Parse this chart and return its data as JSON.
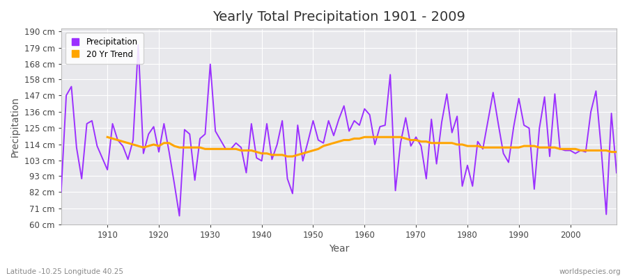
{
  "title": "Yearly Total Precipitation 1901 - 2009",
  "xlabel": "Year",
  "ylabel": "Precipitation",
  "subtitle": "Latitude -10.25 Longitude 40.25",
  "watermark": "worldspecies.org",
  "years": [
    1901,
    1902,
    1903,
    1904,
    1905,
    1906,
    1907,
    1908,
    1909,
    1910,
    1911,
    1912,
    1913,
    1914,
    1915,
    1916,
    1917,
    1918,
    1919,
    1920,
    1921,
    1922,
    1923,
    1924,
    1925,
    1926,
    1927,
    1928,
    1929,
    1930,
    1931,
    1932,
    1933,
    1934,
    1935,
    1936,
    1937,
    1938,
    1939,
    1940,
    1941,
    1942,
    1943,
    1944,
    1945,
    1946,
    1947,
    1948,
    1949,
    1950,
    1951,
    1952,
    1953,
    1954,
    1955,
    1956,
    1957,
    1958,
    1959,
    1960,
    1961,
    1962,
    1963,
    1964,
    1965,
    1966,
    1967,
    1968,
    1969,
    1970,
    1971,
    1972,
    1973,
    1974,
    1975,
    1976,
    1977,
    1978,
    1979,
    1980,
    1981,
    1982,
    1983,
    1984,
    1985,
    1986,
    1987,
    1988,
    1989,
    1990,
    1991,
    1992,
    1993,
    1994,
    1995,
    1996,
    1997,
    1998,
    1999,
    2000,
    2001,
    2002,
    2003,
    2004,
    2005,
    2006,
    2007,
    2008,
    2009
  ],
  "precipitation": [
    82,
    147,
    153,
    112,
    91,
    128,
    130,
    113,
    105,
    97,
    128,
    117,
    113,
    104,
    117,
    181,
    108,
    121,
    126,
    109,
    128,
    109,
    88,
    66,
    124,
    121,
    90,
    118,
    121,
    168,
    123,
    117,
    111,
    111,
    115,
    112,
    95,
    128,
    105,
    103,
    128,
    104,
    114,
    130,
    91,
    81,
    127,
    103,
    116,
    130,
    117,
    115,
    130,
    120,
    131,
    140,
    123,
    130,
    127,
    138,
    134,
    114,
    126,
    127,
    161,
    83,
    115,
    132,
    113,
    119,
    113,
    91,
    131,
    101,
    129,
    148,
    122,
    133,
    86,
    100,
    86,
    116,
    111,
    130,
    149,
    128,
    108,
    102,
    126,
    145,
    127,
    125,
    84,
    125,
    146,
    106,
    148,
    111,
    110,
    110,
    108,
    110,
    109,
    136,
    150,
    112,
    67,
    135,
    95
  ],
  "trend_years": [
    1910,
    1911,
    1912,
    1913,
    1914,
    1915,
    1916,
    1917,
    1918,
    1919,
    1920,
    1921,
    1922,
    1923,
    1924,
    1925,
    1926,
    1927,
    1928,
    1929,
    1930,
    1931,
    1932,
    1933,
    1934,
    1935,
    1936,
    1937,
    1938,
    1939,
    1940,
    1941,
    1942,
    1943,
    1944,
    1945,
    1946,
    1947,
    1948,
    1949,
    1950,
    1951,
    1952,
    1953,
    1954,
    1955,
    1956,
    1957,
    1958,
    1959,
    1960,
    1961,
    1962,
    1963,
    1964,
    1965,
    1966,
    1967,
    1968,
    1969,
    1970,
    1971,
    1972,
    1973,
    1974,
    1975,
    1976,
    1977,
    1978,
    1979,
    1980,
    1981,
    1982,
    1983,
    1984,
    1985,
    1986,
    1987,
    1988,
    1989,
    1990,
    1991,
    1992,
    1993,
    1994,
    1995,
    1996,
    1997,
    1998,
    1999,
    2000,
    2001,
    2002,
    2003,
    2004,
    2005,
    2006,
    2007,
    2008,
    2009
  ],
  "trend": [
    119,
    118,
    117,
    116,
    115,
    114,
    113,
    112,
    113,
    114,
    113,
    115,
    115,
    113,
    112,
    112,
    112,
    112,
    112,
    111,
    111,
    111,
    111,
    111,
    111,
    111,
    110,
    110,
    110,
    109,
    108,
    108,
    107,
    107,
    107,
    106,
    106,
    107,
    108,
    109,
    110,
    111,
    113,
    114,
    115,
    116,
    117,
    117,
    118,
    118,
    119,
    119,
    119,
    119,
    119,
    119,
    119,
    119,
    118,
    117,
    117,
    116,
    116,
    115,
    115,
    115,
    115,
    115,
    114,
    114,
    113,
    113,
    113,
    112,
    112,
    112,
    112,
    112,
    112,
    112,
    112,
    113,
    113,
    113,
    112,
    112,
    112,
    112,
    111,
    111,
    111,
    111,
    110,
    110,
    110,
    110,
    110,
    110,
    109,
    109
  ],
  "precip_color": "#9B30FF",
  "trend_color": "#FFA500",
  "fig_bg_color": "#FFFFFF",
  "plot_bg_color": "#E8E8EC",
  "grid_color": "#FFFFFF",
  "tick_color": "#444444",
  "title_color": "#333333",
  "label_color": "#555555",
  "ylim": [
    60,
    192
  ],
  "ytick_values": [
    60,
    71,
    82,
    93,
    103,
    114,
    125,
    136,
    147,
    158,
    168,
    179,
    190
  ],
  "xlim": [
    1901,
    2009
  ],
  "xtick_values": [
    1910,
    1920,
    1930,
    1940,
    1950,
    1960,
    1970,
    1980,
    1990,
    2000
  ],
  "legend_labels": [
    "Precipitation",
    "20 Yr Trend"
  ]
}
